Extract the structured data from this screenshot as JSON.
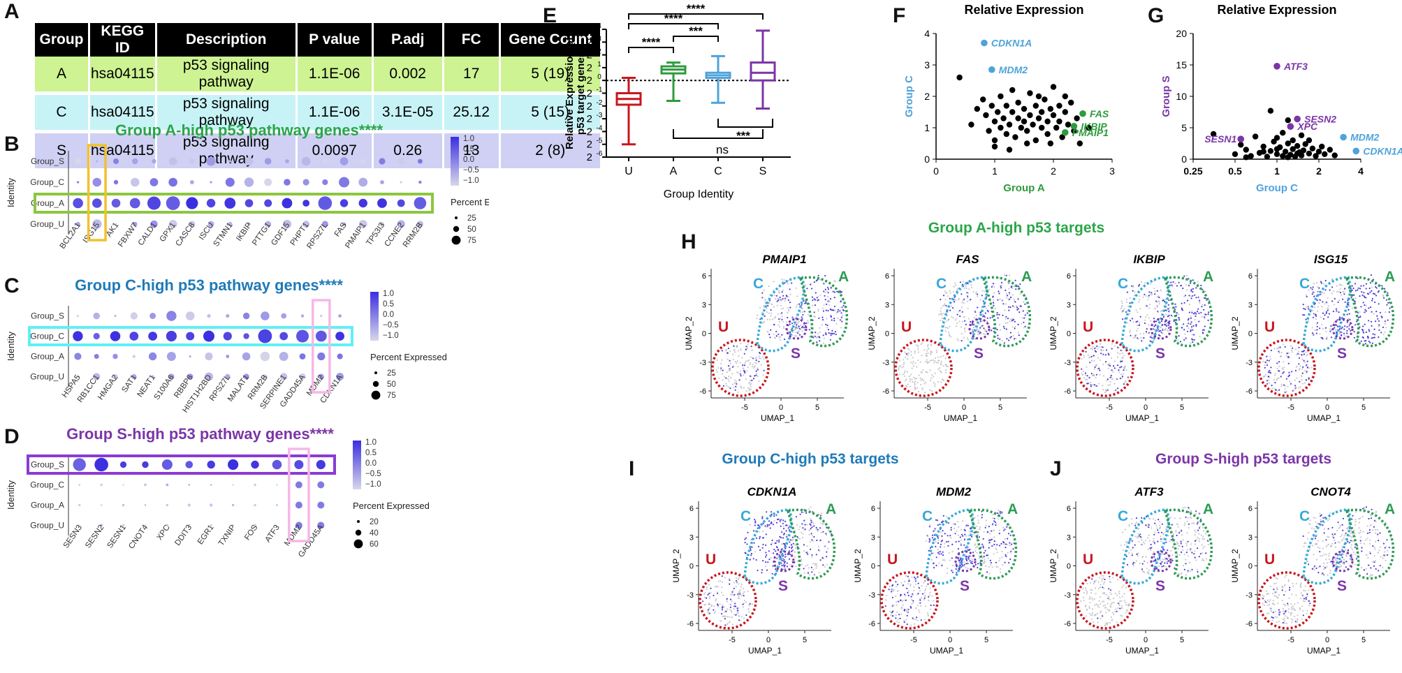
{
  "panels": {
    "A": "A",
    "B": "B",
    "C": "C",
    "D": "D",
    "E": "E",
    "F": "F",
    "G": "G",
    "H": "H",
    "I": "I",
    "J": "J"
  },
  "table": {
    "headers": [
      "Group",
      "KEGG ID",
      "Description",
      "P value",
      "P.adj",
      "FC",
      "Gene Count"
    ],
    "rows": [
      {
        "cells": [
          "A",
          "hsa04115",
          "p53 signaling pathway",
          "1.1E-06",
          "0.002",
          "17",
          "5 (19)"
        ],
        "color": "#cdf392"
      },
      {
        "cells": [
          "C",
          "hsa04115",
          "p53 signaling pathway",
          "1.1E-06",
          "3.1E-05",
          "25.12",
          "5 (15)"
        ],
        "color": "#c7f3f7"
      },
      {
        "cells": [
          "S",
          "hsa04115",
          "p53 signaling pathway",
          "0.0097",
          "0.26",
          "13",
          "2 (8)"
        ],
        "color": "#cfd0f3"
      }
    ]
  },
  "colors": {
    "A": "#2e9b3c",
    "C": "#4ea3db",
    "S": "#7b35a8",
    "U": "#c8161d",
    "dotHigh": "#3b2ee0",
    "dotLow": "#d7d7ea"
  },
  "dotplots": [
    {
      "id": "B",
      "title": "Group A-high p53 pathway genes****",
      "title_color": "#2ba54a",
      "ylabel": "Identity",
      "groups": [
        "Group_S",
        "Group_C",
        "Group_A",
        "Group_U"
      ],
      "genes": [
        "BCL2A1",
        "ISG15",
        "AK1",
        "FBXW7",
        "CALD1",
        "GPX1",
        "CASC8",
        "ISCU",
        "STMN1",
        "IKBIP",
        "PTTG1",
        "GDF15",
        "PHPT1",
        "RPS27L",
        "FAS",
        "PMAIP1",
        "TP53I3",
        "CCNE2",
        "RRM2B"
      ],
      "highlight_row": "Group_A",
      "highlight_row_color": "#8cc63f",
      "highlight_cols": [
        "ISG15"
      ],
      "highlight_col_color": "#f2c12e",
      "legend": {
        "scale": [
          "1.0",
          "0.5",
          "0.0",
          "−0.5",
          "−1.0"
        ],
        "title": "Percent Expressed",
        "sizes": [
          "25",
          "50",
          "75"
        ]
      }
    },
    {
      "id": "C",
      "title": "Group C-high p53 pathway genes****",
      "title_color": "#1f7ab8",
      "ylabel": "Identity",
      "groups": [
        "Group_S",
        "Group_C",
        "Group_A",
        "Group_U"
      ],
      "genes": [
        "HSPA5",
        "RB1CC1",
        "HMGA2",
        "SAT1",
        "NEAT1",
        "S100A6",
        "RBBP6",
        "HIST1H2BD",
        "RPS27L",
        "MALAT1",
        "RRM2B",
        "SERPINE1",
        "GADD45A",
        "MDM2",
        "CDKN1A"
      ],
      "highlight_row": "Group_C",
      "highlight_row_color": "#5ff0f5",
      "highlight_cols": [
        "MDM2"
      ],
      "highlight_col_color": "#f5b8e8",
      "legend": {
        "scale": [
          "1.0",
          "0.5",
          "0.0",
          "−0.5",
          "−1.0"
        ],
        "title": "Percent Expressed",
        "sizes": [
          "25",
          "50",
          "75"
        ]
      }
    },
    {
      "id": "D",
      "title": "Group S-high p53 pathway genes****",
      "title_color": "#7b35a8",
      "ylabel": "Identity",
      "groups": [
        "Group_S",
        "Group_C",
        "Group_A",
        "Group_U"
      ],
      "genes": [
        "SESN3",
        "SESN2",
        "SESN1",
        "CNOT4",
        "XPC",
        "DDIT3",
        "EGR1",
        "TXNIP",
        "FOS",
        "ATF3",
        "MDM2",
        "GADD45A"
      ],
      "highlight_row": "Group_S",
      "highlight_row_color": "#8a3bd6",
      "highlight_cols": [
        "MDM2"
      ],
      "highlight_col_color": "#f5b8e8",
      "legend": {
        "scale": [
          "1.0",
          "0.5",
          "0.0",
          "−0.5",
          "−1.0"
        ],
        "title": "Percent Expressed",
        "sizes": [
          "20",
          "40",
          "60"
        ]
      }
    }
  ],
  "boxplot": {
    "ylabel1": "Relative Expression of",
    "ylabel2": "p53 target genes",
    "xlabel": "Group Identity",
    "groups": [
      "U",
      "A",
      "C",
      "S"
    ],
    "yticks_exp": [
      "4",
      "3",
      "2",
      "1",
      "0",
      "-1",
      "-2",
      "-3",
      "-4",
      "-5",
      "-6"
    ],
    "sig": [
      "****",
      "****",
      "****",
      "***",
      "****",
      "***"
    ],
    "ns": "ns"
  },
  "chart_data": [
    {
      "type": "box",
      "title": "",
      "xlabel": "Group Identity",
      "ylabel": "Relative Expression of p53 target genes",
      "y_scale": "log2",
      "ylim_log2": [
        -6,
        4
      ],
      "series": [
        {
          "name": "U",
          "whisker_low": -5,
          "q1": -1.9,
          "median": -1.45,
          "q3": -1.0,
          "whisker_high": 0.2
        },
        {
          "name": "A",
          "whisker_low": -1.6,
          "q1": 0.55,
          "median": 0.85,
          "q3": 1.1,
          "whisker_high": 1.4
        },
        {
          "name": "C",
          "whisker_low": -1.75,
          "q1": 0.2,
          "median": 0.4,
          "q3": 0.6,
          "whisker_high": 1.9
        },
        {
          "name": "S",
          "whisker_low": -2.2,
          "q1": 0.0,
          "median": 0.6,
          "q3": 1.4,
          "whisker_high": 3.9
        }
      ]
    },
    {
      "type": "scatter",
      "title": "Relative Expression",
      "xlabel": "Group A",
      "ylabel": "Group C",
      "xlim": [
        0,
        3
      ],
      "ylim": [
        0,
        4
      ],
      "xticks": [
        "0",
        "1",
        "2",
        "3"
      ],
      "yticks": [
        "0",
        "1",
        "2",
        "3",
        "4"
      ],
      "labels": [
        {
          "text": "CDKN1A",
          "x": 0.82,
          "y": 3.7,
          "group": "C"
        },
        {
          "text": "MDM2",
          "x": 0.95,
          "y": 2.85,
          "group": "C"
        },
        {
          "text": "FAS",
          "x": 2.5,
          "y": 1.45,
          "group": "A"
        },
        {
          "text": "IKBIP",
          "x": 2.35,
          "y": 1.05,
          "group": "A"
        },
        {
          "text": "PMAIP1",
          "x": 2.2,
          "y": 0.85,
          "group": "A"
        }
      ],
      "points": [
        [
          0.4,
          2.6
        ],
        [
          0.6,
          1.1
        ],
        [
          0.7,
          1.6
        ],
        [
          0.8,
          1.9
        ],
        [
          0.85,
          1.4
        ],
        [
          0.9,
          0.9
        ],
        [
          0.95,
          1.7
        ],
        [
          1.0,
          1.2
        ],
        [
          1.0,
          0.6
        ],
        [
          1.05,
          1.5
        ],
        [
          1.1,
          2.0
        ],
        [
          1.1,
          1.0
        ],
        [
          1.15,
          1.3
        ],
        [
          1.2,
          1.7
        ],
        [
          1.2,
          0.8
        ],
        [
          1.25,
          1.1
        ],
        [
          1.3,
          1.5
        ],
        [
          1.3,
          2.2
        ],
        [
          1.35,
          0.7
        ],
        [
          1.4,
          1.3
        ],
        [
          1.4,
          1.8
        ],
        [
          1.45,
          1.0
        ],
        [
          1.5,
          1.6
        ],
        [
          1.5,
          1.2
        ],
        [
          1.55,
          0.9
        ],
        [
          1.6,
          1.4
        ],
        [
          1.6,
          2.1
        ],
        [
          1.65,
          1.1
        ],
        [
          1.7,
          1.7
        ],
        [
          1.7,
          0.6
        ],
        [
          1.75,
          1.3
        ],
        [
          1.8,
          1.5
        ],
        [
          1.8,
          1.0
        ],
        [
          1.85,
          1.9
        ],
        [
          1.9,
          1.2
        ],
        [
          1.9,
          0.8
        ],
        [
          1.95,
          1.6
        ],
        [
          2.0,
          1.4
        ],
        [
          2.0,
          2.3
        ],
        [
          2.05,
          1.0
        ],
        [
          2.1,
          1.7
        ],
        [
          2.1,
          1.2
        ],
        [
          2.15,
          0.7
        ],
        [
          2.2,
          1.5
        ],
        [
          2.25,
          1.1
        ],
        [
          2.3,
          1.8
        ],
        [
          2.35,
          0.9
        ],
        [
          2.4,
          1.3
        ],
        [
          2.45,
          0.5
        ],
        [
          2.6,
          1.0
        ],
        [
          1.0,
          0.4
        ],
        [
          1.25,
          0.3
        ],
        [
          1.55,
          0.5
        ],
        [
          1.75,
          2.0
        ],
        [
          1.95,
          0.5
        ],
        [
          2.2,
          2.0
        ]
      ]
    },
    {
      "type": "scatter",
      "title": "Relative Expression",
      "xlabel": "Group C",
      "ylabel": "Group S",
      "x_scale": "log2",
      "xlim": [
        0.25,
        4
      ],
      "ylim": [
        0,
        20
      ],
      "xticks": [
        "0.25",
        "0.5",
        "1",
        "2",
        "4"
      ],
      "yticks": [
        "0",
        "5",
        "10",
        "15",
        "20"
      ],
      "labels": [
        {
          "text": "ATF3",
          "x": 1.0,
          "y": 14.8,
          "group": "S"
        },
        {
          "text": "SESN2",
          "x": 1.4,
          "y": 6.4,
          "group": "S"
        },
        {
          "text": "XPC",
          "x": 1.25,
          "y": 5.2,
          "group": "S"
        },
        {
          "text": "SESN1",
          "x": 0.55,
          "y": 3.2,
          "group": "S"
        },
        {
          "text": "MDM2",
          "x": 3.0,
          "y": 3.5,
          "group": "C"
        },
        {
          "text": "CDKN1A",
          "x": 3.7,
          "y": 1.3,
          "group": "C"
        }
      ],
      "points": [
        [
          0.35,
          4.0
        ],
        [
          0.5,
          0.8
        ],
        [
          0.55,
          2.3
        ],
        [
          0.6,
          1.5
        ],
        [
          0.65,
          0.5
        ],
        [
          0.7,
          3.6
        ],
        [
          0.75,
          1.0
        ],
        [
          0.8,
          2.0
        ],
        [
          0.85,
          0.4
        ],
        [
          0.9,
          7.7
        ],
        [
          0.9,
          1.3
        ],
        [
          0.95,
          2.8
        ],
        [
          1.0,
          0.8
        ],
        [
          1.0,
          3.4
        ],
        [
          1.05,
          1.9
        ],
        [
          1.1,
          0.5
        ],
        [
          1.1,
          4.2
        ],
        [
          1.15,
          1.2
        ],
        [
          1.2,
          2.5
        ],
        [
          1.2,
          6.2
        ],
        [
          1.25,
          0.7
        ],
        [
          1.3,
          1.6
        ],
        [
          1.3,
          3.0
        ],
        [
          1.35,
          0.4
        ],
        [
          1.4,
          2.1
        ],
        [
          1.45,
          1.1
        ],
        [
          1.5,
          0.6
        ],
        [
          1.5,
          3.8
        ],
        [
          1.55,
          1.4
        ],
        [
          1.6,
          2.4
        ],
        [
          1.7,
          0.9
        ],
        [
          1.8,
          1.7
        ],
        [
          1.9,
          0.5
        ],
        [
          2.0,
          1.2
        ],
        [
          2.1,
          2.0
        ],
        [
          2.2,
          0.8
        ],
        [
          2.4,
          1.5
        ],
        [
          2.6,
          0.6
        ],
        [
          0.6,
          0.3
        ],
        [
          0.8,
          1.2
        ],
        [
          1.0,
          1.6
        ],
        [
          1.2,
          0.3
        ],
        [
          1.4,
          0.9
        ],
        [
          1.7,
          3.0
        ]
      ]
    }
  ],
  "umap_sections": [
    {
      "id": "H",
      "title": "Group A-high p53 targets",
      "title_color": "#2ba54a",
      "genes": [
        "PMAIP1",
        "FAS",
        "IKBIP",
        "ISG15"
      ]
    },
    {
      "id": "I",
      "title": "Group C-high p53 targets",
      "title_color": "#1f7ab8",
      "genes": [
        "CDKN1A",
        "MDM2"
      ]
    },
    {
      "id": "J",
      "title": "Group S-high p53 targets",
      "title_color": "#7b35a8",
      "genes": [
        "ATF3",
        "CNOT4"
      ]
    }
  ],
  "umap_axes": {
    "xlabel": "UMAP_1",
    "ylabel": "UMAP_2",
    "xticks": [
      "-5",
      "0",
      "5"
    ],
    "yticks": [
      "6",
      "3",
      "0",
      "-3",
      "-6"
    ]
  },
  "umap_labels": {
    "U": "U",
    "C": "C",
    "A": "A",
    "S": "S"
  }
}
